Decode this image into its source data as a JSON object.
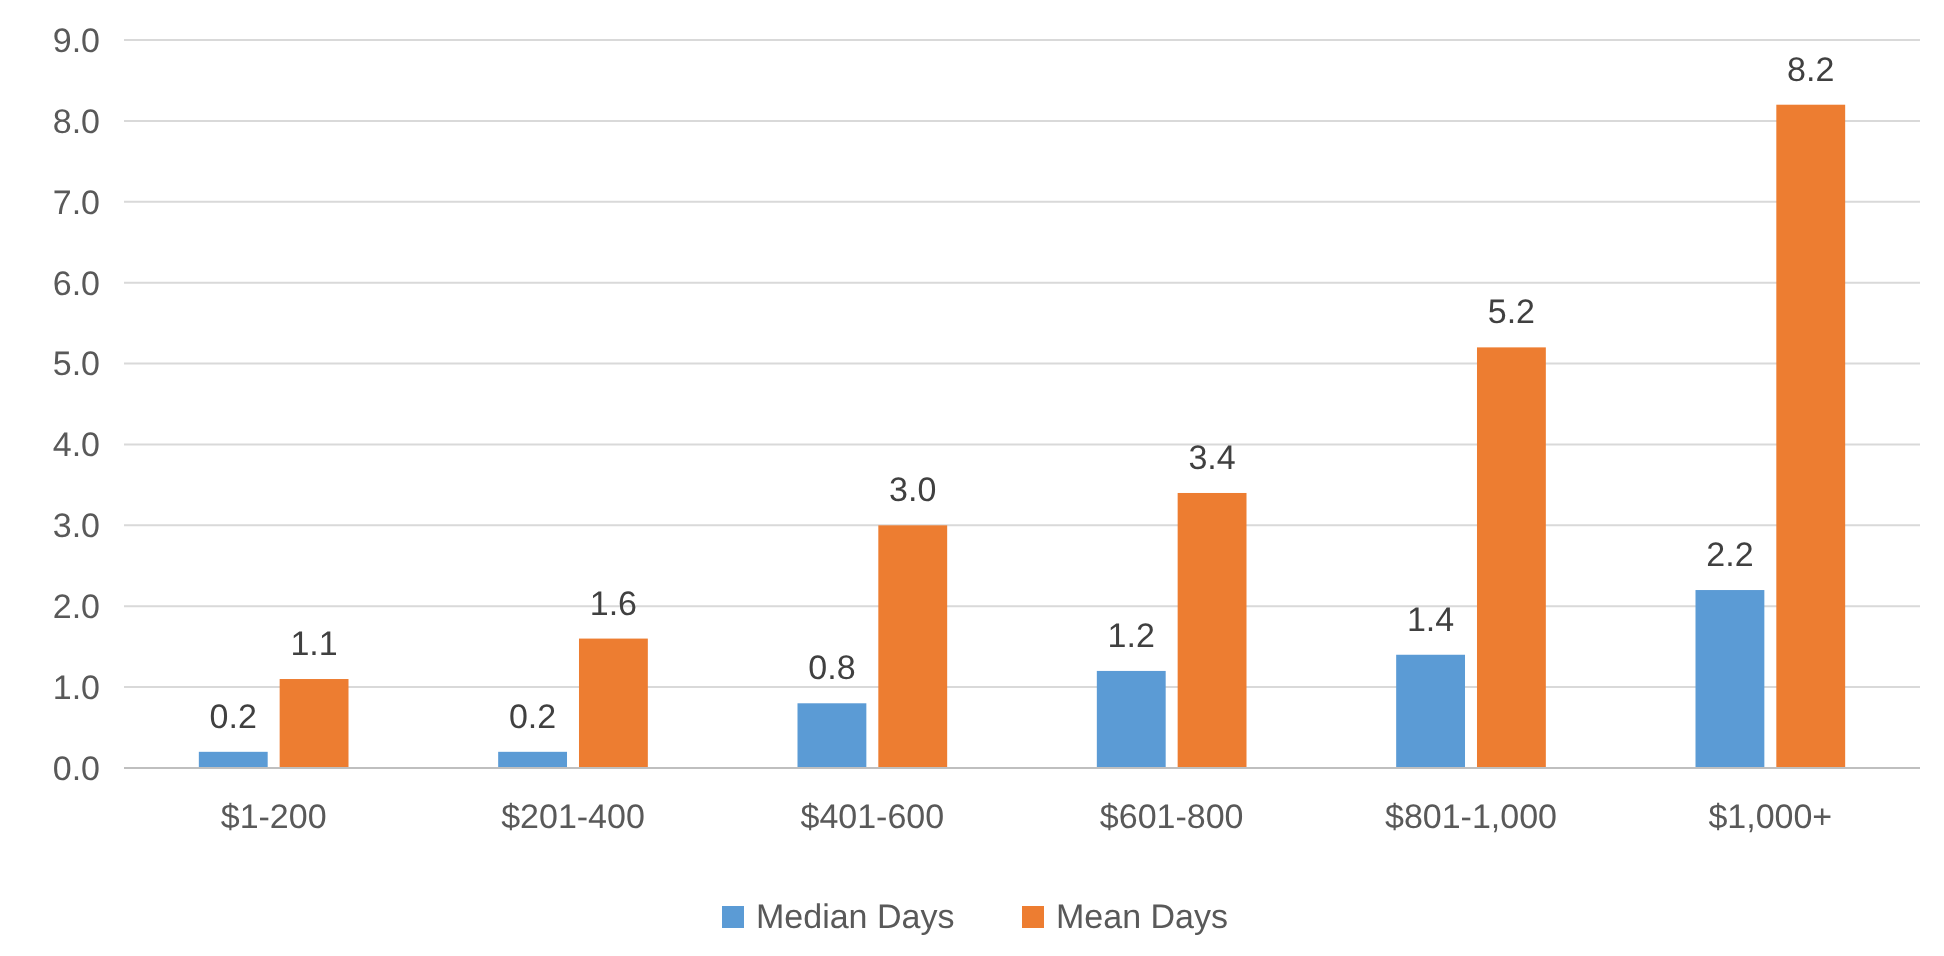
{
  "chart_data": {
    "type": "bar",
    "categories": [
      "$1-200",
      "$201-400",
      "$401-600",
      "$601-800",
      "$801-1,000",
      "$1,000+"
    ],
    "series": [
      {
        "name": "Median Days",
        "color": "#5b9bd5",
        "values": [
          0.2,
          0.2,
          0.8,
          1.2,
          1.4,
          2.2
        ],
        "value_labels": [
          "0.2",
          "0.2",
          "0.8",
          "1.2",
          "1.4",
          "2.2"
        ]
      },
      {
        "name": "Mean Days",
        "color": "#ed7d31",
        "values": [
          1.1,
          1.6,
          3.0,
          3.4,
          5.2,
          8.2
        ],
        "value_labels": [
          "1.1",
          "1.6",
          "3.0",
          "3.4",
          "5.2",
          "8.2"
        ]
      }
    ],
    "ylim": [
      0,
      9
    ],
    "yticks": [
      {
        "value": 0,
        "label": "0.0"
      },
      {
        "value": 1,
        "label": "1.0"
      },
      {
        "value": 2,
        "label": "2.0"
      },
      {
        "value": 3,
        "label": "3.0"
      },
      {
        "value": 4,
        "label": "4.0"
      },
      {
        "value": 5,
        "label": "5.0"
      },
      {
        "value": 6,
        "label": "6.0"
      },
      {
        "value": 7,
        "label": "7.0"
      },
      {
        "value": 8,
        "label": "8.0"
      },
      {
        "value": 9,
        "label": "9.0"
      }
    ],
    "grid": "y",
    "legend": "bottom"
  }
}
